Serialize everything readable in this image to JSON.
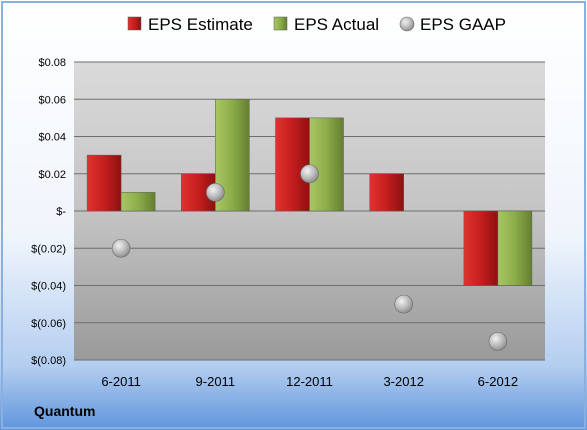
{
  "chart_data": {
    "type": "bar",
    "categories": [
      "6-2011",
      "9-2011",
      "12-2011",
      "3-2012",
      "6-2012"
    ],
    "series": [
      {
        "name": "EPS Estimate",
        "type": "bar",
        "color": "#cc1f1f",
        "values": [
          0.03,
          0.02,
          0.05,
          0.02,
          -0.04
        ]
      },
      {
        "name": "EPS Actual",
        "type": "bar",
        "color": "#8cad4a",
        "values": [
          0.01,
          0.06,
          0.05,
          null,
          -0.04
        ]
      },
      {
        "name": "EPS GAAP",
        "type": "marker",
        "color": "#a8a8a8",
        "values": [
          -0.02,
          0.01,
          0.02,
          -0.05,
          -0.07
        ]
      }
    ],
    "ylim": [
      -0.08,
      0.08
    ],
    "yticks": [
      -0.08,
      -0.06,
      -0.04,
      -0.02,
      0,
      0.02,
      0.04,
      0.06,
      0.08
    ],
    "ytick_labels": [
      "$(0.08)",
      "$(0.06)",
      "$(0.04)",
      "$(0.02)",
      "$-",
      "$0.02",
      "$0.04",
      "$0.06",
      "$0.08"
    ],
    "grid": true,
    "legend_position": "top"
  },
  "footer": {
    "label": "Quantum"
  }
}
